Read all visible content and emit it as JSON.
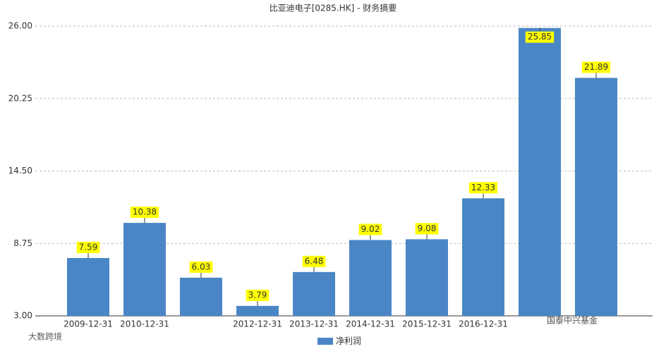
{
  "chart_data": {
    "type": "bar",
    "title": "比亚迪电子[0285.HK] - 财务摘要",
    "categories": [
      "2009-12-31",
      "2010-12-31",
      null,
      "2012-12-31",
      "2013-12-31",
      "2014-12-31",
      "2015-12-31",
      "2016-12-31",
      null,
      null
    ],
    "series": [
      {
        "name": "净利润",
        "color": "#4a86c5",
        "values": [
          7.59,
          10.38,
          6.03,
          3.79,
          6.48,
          9.02,
          9.08,
          12.33,
          25.85,
          21.89
        ]
      }
    ],
    "ylim": [
      3,
      26
    ],
    "yticks": [
      {
        "value": 3,
        "label": "3.00"
      },
      {
        "value": 8.75,
        "label": "8.75"
      },
      {
        "value": 14.5,
        "label": "14.50"
      },
      {
        "value": 20.25,
        "label": "20.25"
      },
      {
        "value": 26,
        "label": "26.00"
      }
    ],
    "grid": true,
    "legend": "bottom",
    "watermarks": [
      "国泰中兴基金",
      "大数跨境"
    ]
  }
}
